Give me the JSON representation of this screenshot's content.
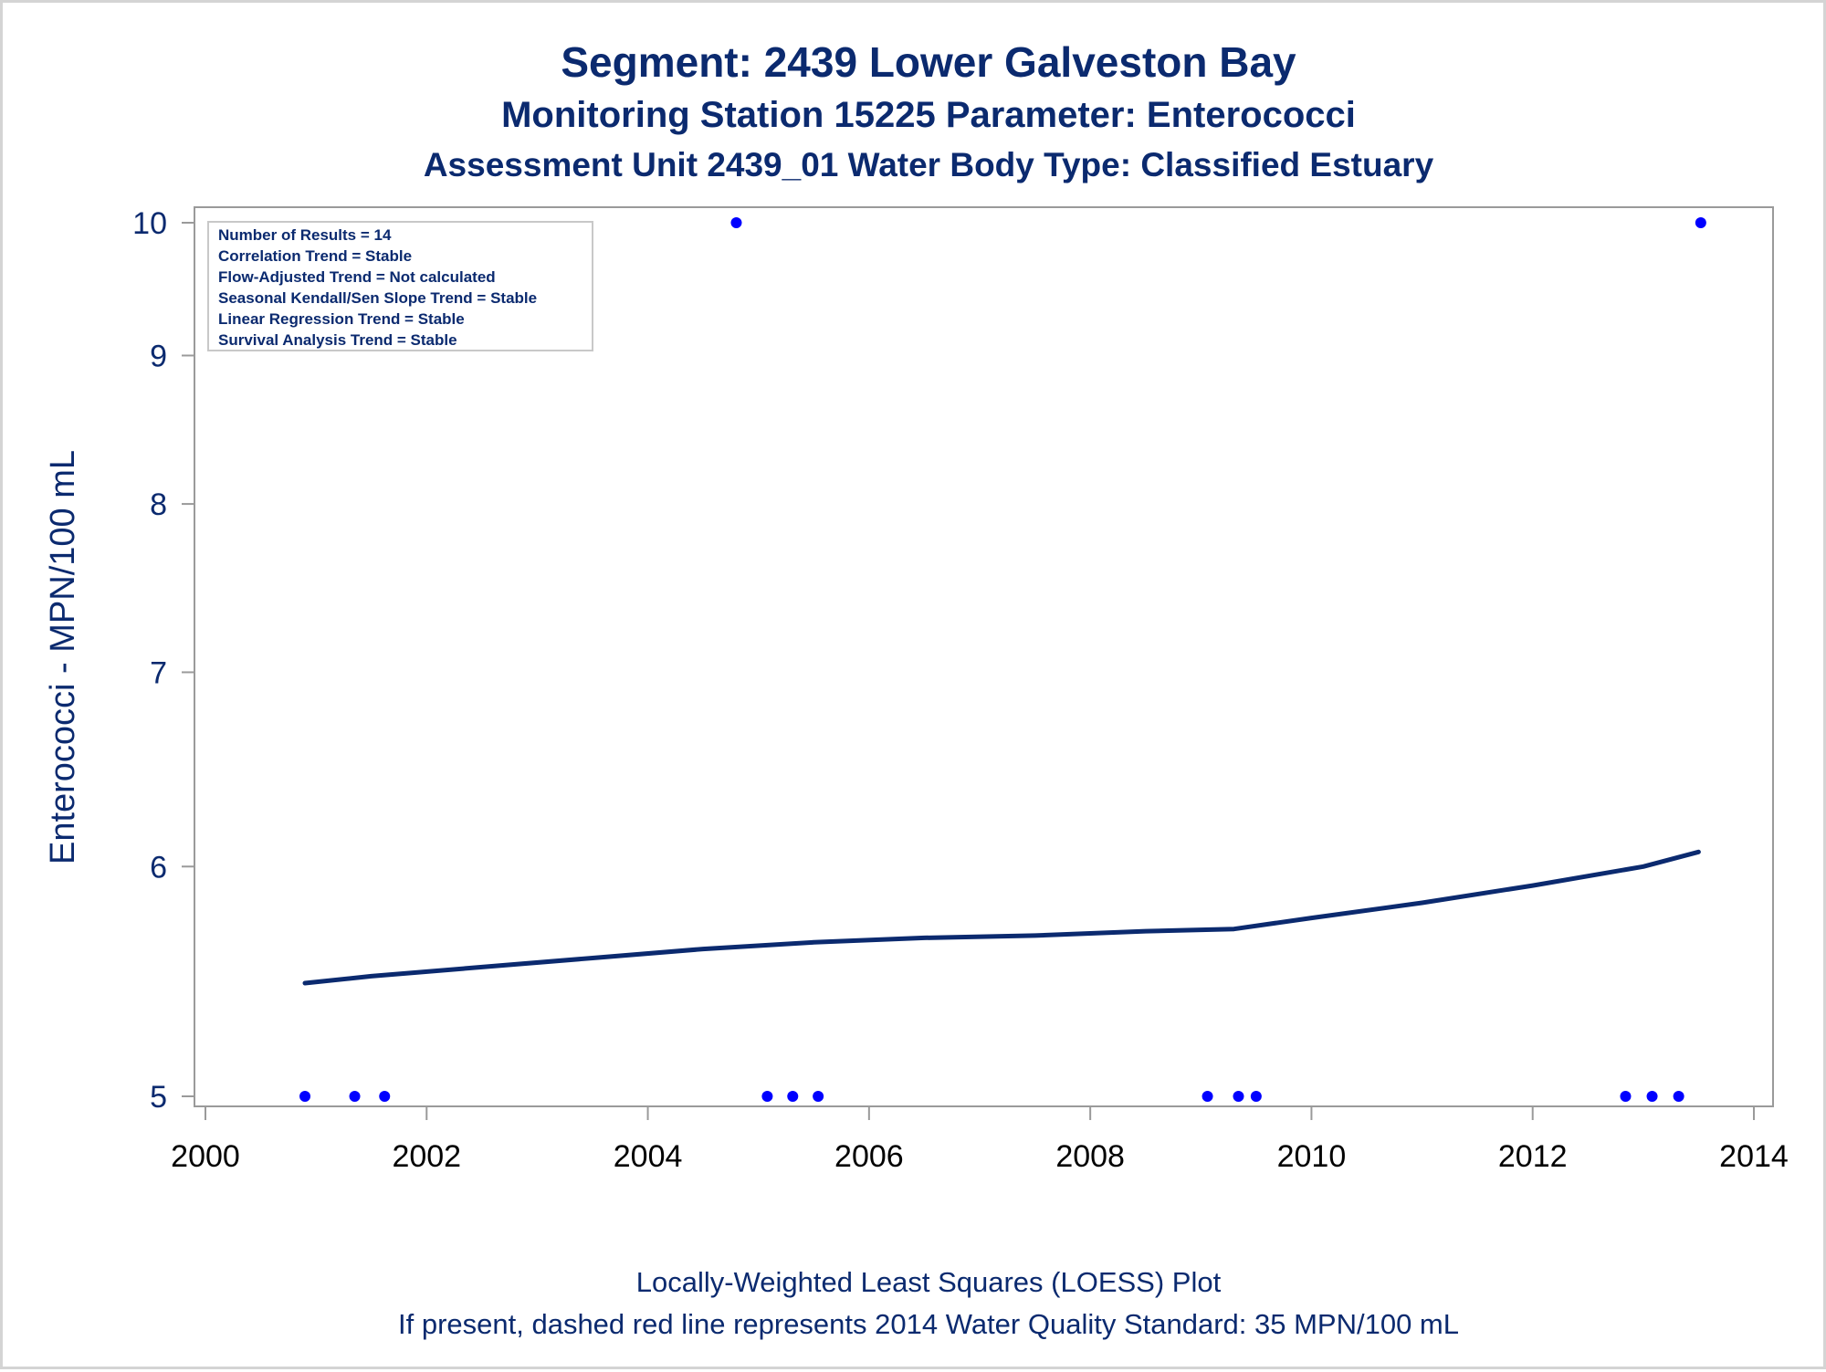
{
  "titles": {
    "line1": "Segment: 2439  Lower Galveston Bay",
    "line2": "Monitoring Station 15225 Parameter: Enterococci",
    "line3": "Assessment Unit 2439_01   Water Body Type: Classified Estuary"
  },
  "inset": {
    "lines": [
      "Number of Results = 14",
      "Correlation Trend = Stable",
      "Flow-Adjusted Trend = Not calculated",
      "Seasonal Kendall/Sen Slope Trend = Stable",
      "Linear Regression Trend = Stable",
      "Survival Analysis Trend = Stable"
    ]
  },
  "footnotes": {
    "line1": "Locally-Weighted Least Squares (LOESS) Plot",
    "line2": "If present, dashed red line represents 2014 Water Quality Standard: 35 MPN/100 mL"
  },
  "colors": {
    "title": "#0b2a6f",
    "points": "#0000ff",
    "loess": "#0b2a6f",
    "axis": "#9a9a9a"
  },
  "chart_data": {
    "type": "scatter",
    "y_scale": "log",
    "xlabel": "",
    "ylabel": "Enterococci - MPN/100 mL",
    "xlim": [
      2000,
      2014
    ],
    "ylim": [
      4.95,
      10.1
    ],
    "xticks": [
      2000,
      2002,
      2004,
      2006,
      2008,
      2010,
      2012,
      2014
    ],
    "yticks": [
      5,
      6,
      7,
      8,
      9,
      10
    ],
    "grid": false,
    "points": [
      {
        "x": 2000.9,
        "y": 5
      },
      {
        "x": 2001.35,
        "y": 5
      },
      {
        "x": 2001.62,
        "y": 5
      },
      {
        "x": 2004.8,
        "y": 10
      },
      {
        "x": 2005.08,
        "y": 5
      },
      {
        "x": 2005.31,
        "y": 5
      },
      {
        "x": 2005.54,
        "y": 5
      },
      {
        "x": 2009.06,
        "y": 5
      },
      {
        "x": 2009.34,
        "y": 5
      },
      {
        "x": 2009.5,
        "y": 5
      },
      {
        "x": 2012.84,
        "y": 5
      },
      {
        "x": 2013.08,
        "y": 5
      },
      {
        "x": 2013.32,
        "y": 5
      },
      {
        "x": 2013.52,
        "y": 10
      }
    ],
    "loess": [
      {
        "x": 2000.9,
        "y": 5.47
      },
      {
        "x": 2001.5,
        "y": 5.5
      },
      {
        "x": 2002.5,
        "y": 5.54
      },
      {
        "x": 2003.5,
        "y": 5.58
      },
      {
        "x": 2004.5,
        "y": 5.62
      },
      {
        "x": 2005.5,
        "y": 5.65
      },
      {
        "x": 2006.5,
        "y": 5.67
      },
      {
        "x": 2007.5,
        "y": 5.68
      },
      {
        "x": 2008.5,
        "y": 5.7
      },
      {
        "x": 2009.3,
        "y": 5.71
      },
      {
        "x": 2010.0,
        "y": 5.76
      },
      {
        "x": 2011.0,
        "y": 5.83
      },
      {
        "x": 2012.0,
        "y": 5.91
      },
      {
        "x": 2013.0,
        "y": 6.0
      },
      {
        "x": 2013.5,
        "y": 6.07
      }
    ]
  }
}
